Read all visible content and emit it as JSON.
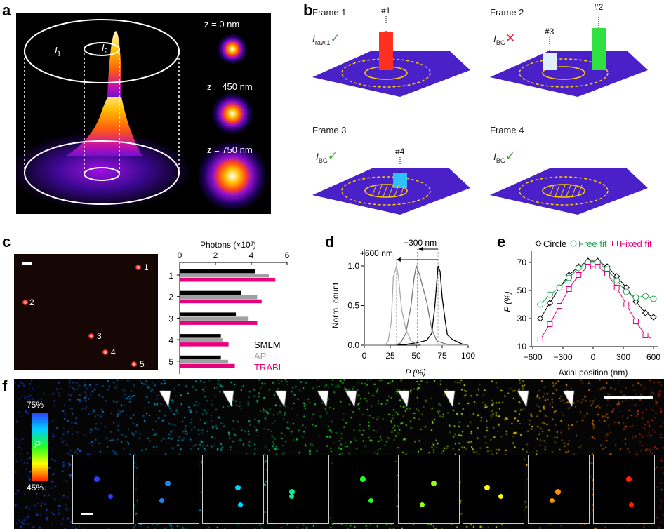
{
  "panels": {
    "a": "a",
    "b": "b",
    "c": "c",
    "d": "d",
    "e": "e",
    "f": "f"
  },
  "panel_a": {
    "I1": "I",
    "I1_sub": "1",
    "I2": "I",
    "I2_sub": "2",
    "z_labels": [
      "z = 0 nm",
      "z = 450 nm",
      "z = 750 nm"
    ]
  },
  "panel_b": {
    "frames": [
      {
        "title": "Frame 1",
        "label": "I",
        "sub": "raw,1",
        "mark": "✓",
        "mark_color": "#3aaa35",
        "peaks": [
          "#1"
        ]
      },
      {
        "title": "Frame 2",
        "label": "I",
        "sub": "BG",
        "mark": "✕",
        "mark_color": "#e5202e",
        "peaks": [
          "#2",
          "#3"
        ]
      },
      {
        "title": "Frame 3",
        "label": "I",
        "sub": "BG",
        "mark": "✓",
        "mark_color": "#3aaa35",
        "peaks": [
          "#4"
        ]
      },
      {
        "title": "Frame 4",
        "label": "I",
        "sub": "BG",
        "mark": "✓",
        "mark_color": "#3aaa35",
        "peaks": []
      }
    ]
  },
  "panel_c_image": {
    "spot_labels": [
      "1",
      "2",
      "3",
      "4",
      "5"
    ]
  },
  "panel_f": {
    "colorbar_top": "75%",
    "colorbar_label": "P",
    "colorbar_bottom": "45%",
    "colors": [
      "#2b3cff",
      "#00d0ff",
      "#22ff22",
      "#ffff00",
      "#ff2200"
    ]
  },
  "chart_data": [
    {
      "id": "c",
      "type": "bar",
      "orientation": "horizontal",
      "title": "Photons (×10³)",
      "xlabel": "Photons (×10³)",
      "xlim": [
        0,
        6
      ],
      "xticks": [
        "0",
        "2",
        "4",
        "6"
      ],
      "categories": [
        "1",
        "2",
        "3",
        "4",
        "5"
      ],
      "series": [
        {
          "name": "SMLM",
          "color": "#000000",
          "values": [
            4.23,
            3.45,
            3.14,
            2.3,
            2.3
          ]
        },
        {
          "name": "AP",
          "color": "#a0a0a0",
          "values": [
            4.98,
            4.33,
            3.85,
            2.39,
            2.71
          ]
        },
        {
          "name": "TRABI",
          "color": "#e6007e",
          "values": [
            5.34,
            4.58,
            4.33,
            2.73,
            3.08
          ]
        }
      ],
      "legend": "bottom-right"
    },
    {
      "id": "d",
      "type": "line",
      "xlabel": "P (%)",
      "ylabel": "Norm. count",
      "xlim": [
        0,
        100
      ],
      "ylim": [
        0,
        1.2
      ],
      "xticks": [
        "0",
        "25",
        "50",
        "75",
        "100"
      ],
      "yticks": [
        "0.0",
        "0.5",
        "1.0"
      ],
      "series": [
        {
          "color": "#000000",
          "x": [
            0,
            30,
            40,
            50,
            60,
            65,
            68,
            71,
            73,
            75,
            78,
            80,
            85,
            90,
            95,
            100
          ],
          "y": [
            0,
            0,
            0.01,
            0.03,
            0.06,
            0.15,
            0.5,
            1.0,
            0.93,
            0.6,
            0.3,
            0.13,
            0.07,
            0.04,
            0.01,
            0
          ]
        },
        {
          "color": "#777777",
          "x": [
            0,
            30,
            35,
            40,
            45,
            48,
            50,
            53,
            57,
            60,
            65,
            70,
            80,
            100
          ],
          "y": [
            0,
            0,
            0.03,
            0.15,
            0.5,
            0.85,
            1.0,
            0.9,
            0.7,
            0.55,
            0.2,
            0.05,
            0.01,
            0
          ]
        },
        {
          "color": "#aaaaaa",
          "x": [
            0,
            20,
            23,
            26,
            28,
            30,
            31,
            33,
            36,
            40,
            45,
            55,
            100
          ],
          "y": [
            0,
            0,
            0.05,
            0.3,
            0.87,
            0.95,
            1.0,
            0.85,
            0.45,
            0.2,
            0.05,
            0,
            0
          ]
        }
      ],
      "guides": [
        31,
        51,
        71
      ],
      "annotations": [
        {
          "text": "+300 nm",
          "from": 71,
          "to": 52
        },
        {
          "text": "+600 nm",
          "from": 71,
          "to": 31
        }
      ]
    },
    {
      "id": "e",
      "type": "line",
      "xlabel": "Axial position (nm)",
      "ylabel": "P (%)",
      "xlim": [
        -650,
        680
      ],
      "ylim": [
        10,
        80
      ],
      "xticks": [
        "−600",
        "−300",
        "0",
        "300",
        "600"
      ],
      "yticks": [
        "10",
        "30",
        "50",
        "70"
      ],
      "x": [
        -525,
        -430,
        -335,
        -240,
        -145,
        -50,
        45,
        140,
        235,
        330,
        425,
        520,
        600
      ],
      "series": [
        {
          "name": "Circle",
          "marker": "diamond",
          "color": "#000000",
          "values": [
            30,
            41,
            52,
            61,
            67,
            71,
            71,
            67,
            60,
            52,
            42,
            34,
            31
          ]
        },
        {
          "name": "Free fit",
          "marker": "circle",
          "color": "#22a050",
          "values": [
            40,
            47,
            52,
            59,
            66,
            70,
            70,
            65,
            57,
            49,
            45,
            46,
            44
          ]
        },
        {
          "name": "Fixed fit",
          "marker": "square",
          "color": "#e6007e",
          "values": [
            15,
            26,
            39,
            51,
            61,
            67,
            67,
            62,
            52,
            40,
            28,
            18,
            15
          ]
        }
      ],
      "legend": "top"
    }
  ]
}
